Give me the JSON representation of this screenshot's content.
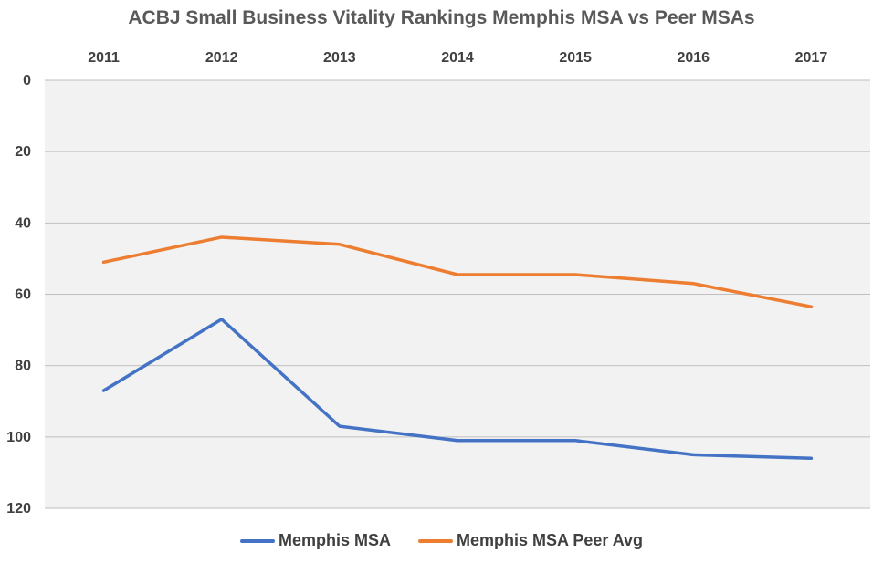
{
  "chart_data": {
    "type": "line",
    "title": "ACBJ Small Business Vitality Rankings Memphis MSA vs Peer MSAs",
    "categories": [
      "2011",
      "2012",
      "2013",
      "2014",
      "2015",
      "2016",
      "2017"
    ],
    "x_axis_position": "top",
    "y_axis": {
      "min": 0,
      "max": 120,
      "step": 20,
      "reversed": true,
      "ticks": [
        "0",
        "20",
        "40",
        "60",
        "80",
        "100",
        "120"
      ]
    },
    "grid": true,
    "legend": "bottom",
    "series": [
      {
        "name": "Memphis MSA",
        "color": "#4472C4",
        "values": [
          87,
          67,
          97,
          101,
          101,
          105,
          106
        ]
      },
      {
        "name": "Memphis MSA Peer Avg",
        "color": "#ED7D31",
        "values": [
          51,
          44,
          46,
          54.5,
          54.5,
          57,
          63.5
        ]
      }
    ]
  }
}
